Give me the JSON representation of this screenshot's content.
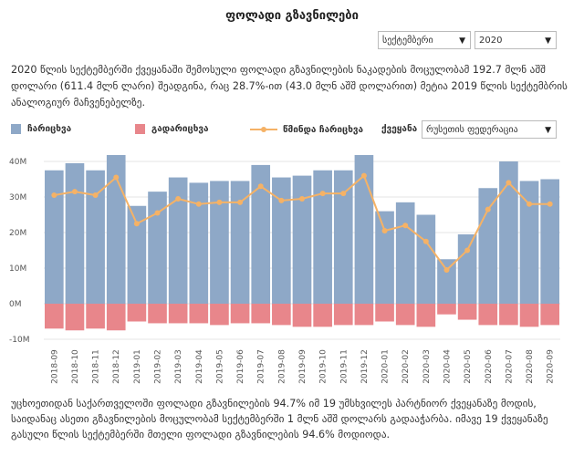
{
  "header": {
    "title": "ფოლადი გზავნილები"
  },
  "filters": {
    "month": "სექტემბერი",
    "year": "2020",
    "country_label": "ქვეყანა",
    "country": "რუსეთის ფედერაცია"
  },
  "intro_text": "2020 წლის სექტემბერში ქვეყანაში შემოსული ფოლადი გზავნილების ნაკადების მოცულობამ 192.7 მლნ აშშ დოლარი (611.4 მლნ ლარი) შეადგინა, რაც 28.7%-ით (43.0 მლნ აშშ დოლარით) მეტია 2019 წლის სექტემბრის ანალოგიურ მაჩვენებელზე.",
  "footer_text": "უცხოეთიდან საქართველოში ფოლადი გზავნილების 94.7% იმ 19 უმსხვილეს პარტნიორ ქვეყანაზე მოდის, საიდანაც ასეთი გზავნილების მოცულობამ სექტემბერში 1 მლნ აშშ დოლარს გადააჭარბა. იმავე 19 ქვეყანაზე გასული წლის სექტემბერში მთელი ფოლადი გზავნილების 94.6% მოდიოდა.",
  "colors": {
    "inflow": "#8ea8c7",
    "outflow": "#e8868b",
    "net": "#f5b266"
  },
  "chart_data": {
    "type": "bar",
    "legend": {
      "inflow": "ჩარიცხვა",
      "outflow": "გადარიცხვა",
      "net": "წმინდა ჩარიცხვა",
      "position": "top-left"
    },
    "categories": [
      "2018-09",
      "2018-10",
      "2018-11",
      "2018-12",
      "2019-01",
      "2019-02",
      "2019-03",
      "2019-04",
      "2019-05",
      "2019-06",
      "2019-07",
      "2019-08",
      "2019-09",
      "2019-10",
      "2019-11",
      "2019-12",
      "2020-01",
      "2020-02",
      "2020-03",
      "2020-04",
      "2020-05",
      "2020-06",
      "2020-07",
      "2020-08",
      "2020-09"
    ],
    "series": [
      {
        "name": "ჩარიცხვა",
        "kind": "bar",
        "values": [
          37.5,
          39.5,
          37.5,
          43.5,
          27.5,
          31.5,
          35.5,
          34,
          34.5,
          34.5,
          39,
          35.5,
          36,
          37.5,
          37.5,
          43.5,
          26,
          28.5,
          25,
          12.5,
          19.5,
          32.5,
          40,
          34.5,
          35
        ]
      },
      {
        "name": "გადარიცხვა",
        "kind": "bar",
        "values": [
          -7,
          -7.5,
          -7,
          -7.5,
          -5,
          -5.5,
          -5.5,
          -5.5,
          -6,
          -5.5,
          -5.5,
          -6,
          -6.5,
          -6.5,
          -6,
          -6,
          -5,
          -6,
          -6.5,
          -3,
          -4.5,
          -6,
          -6,
          -6.5,
          -6
        ]
      },
      {
        "name": "წმინდა ჩარიცხვა",
        "kind": "line",
        "values": [
          30.5,
          31.5,
          30.5,
          35.5,
          22.5,
          25.5,
          29.5,
          28,
          28.5,
          28.5,
          33,
          29,
          29.5,
          31,
          31,
          36,
          20.5,
          22,
          17.5,
          9.5,
          15,
          26.5,
          34,
          28,
          28
        ]
      }
    ],
    "y_ticks": [
      "40M",
      "30M",
      "20M",
      "10M",
      "0M",
      "-10M"
    ],
    "y_tick_values": [
      40,
      30,
      20,
      10,
      0,
      -10
    ],
    "ylim": [
      -10,
      45
    ],
    "xlabel": "",
    "ylabel": ""
  }
}
